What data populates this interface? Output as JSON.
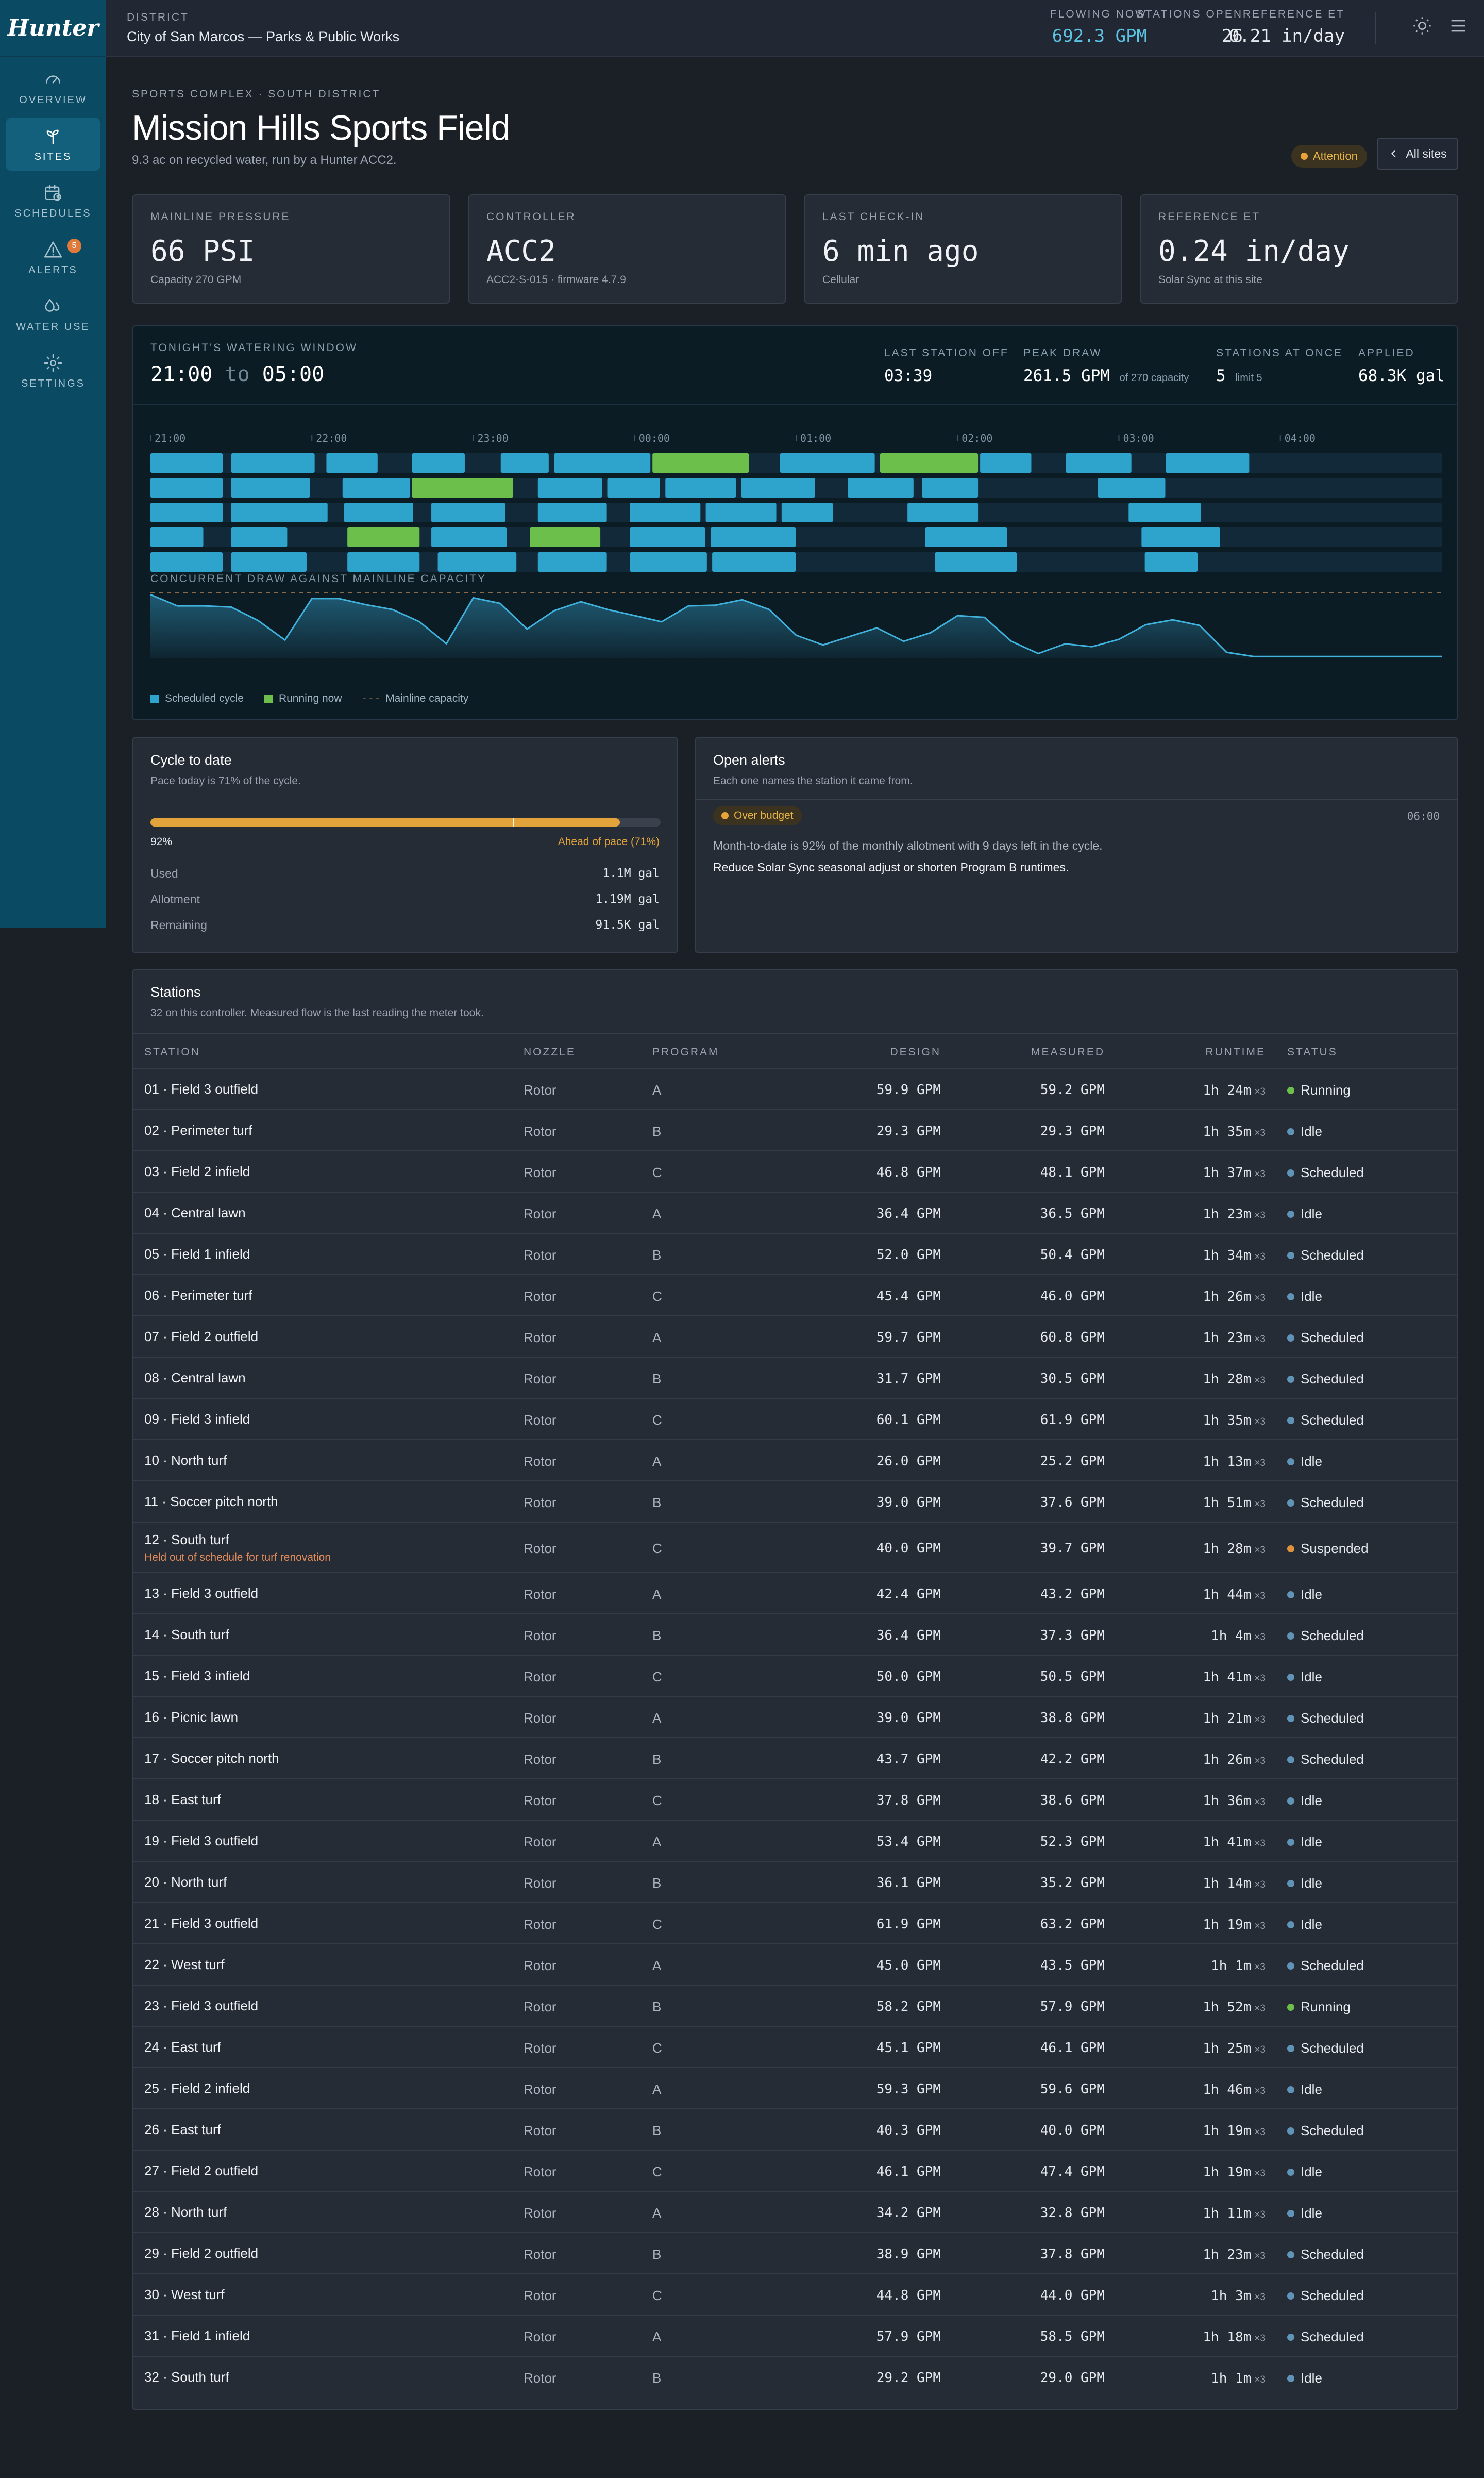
{
  "brand": {
    "logo_text": "Hunter"
  },
  "nav": [
    {
      "label": "OVERVIEW",
      "icon": "gauge-icon",
      "active": false
    },
    {
      "label": "SITES",
      "icon": "sprout-icon",
      "active": true
    },
    {
      "label": "SCHEDULES",
      "icon": "calendar-clock-icon",
      "active": false
    },
    {
      "label": "ALERTS",
      "icon": "alert-triangle-icon",
      "active": false,
      "badge": "5"
    },
    {
      "label": "WATER USE",
      "icon": "droplets-icon",
      "active": false
    },
    {
      "label": "SETTINGS",
      "icon": "gear-icon",
      "active": false
    }
  ],
  "topbar": {
    "district_caption": "DISTRICT",
    "district_name": "City of San Marcos — Parks & Public Works",
    "flowing_caption": "FLOWING NOW",
    "flowing_value": "692.3 GPM",
    "open_caption": "STATIONS OPEN",
    "open_value": "26",
    "et_caption": "REFERENCE ET",
    "et_value": "0.21 in/day",
    "accent": "#5cc3e3"
  },
  "header": {
    "eyebrow": "SPORTS COMPLEX · SOUTH DISTRICT",
    "title": "Mission Hills Sports Field",
    "subtitle": "9.3 ac on recycled water, run by a Hunter ACC2.",
    "status_badge": "Attention",
    "all_sites_button": "All sites"
  },
  "kpis": [
    {
      "caption": "MAINLINE PRESSURE",
      "value": "66 PSI",
      "sub": "Capacity 270 GPM"
    },
    {
      "caption": "CONTROLLER",
      "value": "ACC2",
      "sub": "ACC2-S-015 · firmware 4.7.9"
    },
    {
      "caption": "LAST CHECK-IN",
      "value": "6 min ago",
      "sub": "Cellular"
    },
    {
      "caption": "REFERENCE ET",
      "value": "0.24 in/day",
      "sub": "Solar Sync at this site"
    }
  ],
  "window": {
    "caption": "TONIGHT'S WATERING WINDOW",
    "start": "21:00",
    "to": "to",
    "end": "05:00",
    "stats": [
      {
        "caption": "LAST STATION OFF",
        "value": "03:39",
        "note": ""
      },
      {
        "caption": "PEAK DRAW",
        "value": "261.5 GPM",
        "note": "of 270 capacity"
      },
      {
        "caption": "STATIONS AT ONCE",
        "value": "5",
        "note": "limit 5"
      },
      {
        "caption": "APPLIED",
        "value": "68.3K gal",
        "note": ""
      }
    ],
    "hours": [
      "21:00",
      "22:00",
      "23:00",
      "00:00",
      "01:00",
      "02:00",
      "03:00",
      "04:00"
    ],
    "draw_caption": "CONCURRENT DRAW AGAINST MAINLINE CAPACITY",
    "legend": {
      "scheduled": "Scheduled cycle",
      "running": "Running now",
      "capacity": "Mainline capacity"
    },
    "colors": {
      "scheduled": "#2ea3cc",
      "running": "#6cbf4a",
      "capacity": "#8a6a4a"
    }
  },
  "chart_data": {
    "type": "area",
    "title": "CONCURRENT DRAW AGAINST MAINLINE CAPACITY",
    "xlabel": "",
    "ylabel": "",
    "x": [
      "21:00",
      "21:10",
      "21:20",
      "21:30",
      "21:40",
      "21:50",
      "22:00",
      "22:10",
      "22:20",
      "22:30",
      "22:40",
      "22:50",
      "23:00",
      "23:10",
      "23:20",
      "23:30",
      "23:40",
      "23:50",
      "00:00",
      "00:10",
      "00:20",
      "00:30",
      "00:40",
      "00:50",
      "01:00",
      "01:10",
      "01:20",
      "01:30",
      "01:40",
      "01:50",
      "02:00",
      "02:10",
      "02:20",
      "02:30",
      "02:40",
      "02:50",
      "03:00",
      "03:10",
      "03:20",
      "03:30",
      "03:40",
      "03:50",
      "04:00",
      "04:10",
      "04:20",
      "04:30",
      "04:40",
      "04:50",
      "05:00"
    ],
    "series": [
      {
        "values": [
          261,
          215,
          215,
          210,
          155,
          75,
          245,
          245,
          220,
          200,
          150,
          60,
          248,
          225,
          120,
          195,
          232,
          200,
          175,
          150,
          215,
          218,
          240,
          200,
          95,
          55,
          90,
          125,
          70,
          105,
          175,
          168,
          70,
          20,
          60,
          48,
          78,
          138,
          158,
          135,
          25,
          8,
          8,
          8,
          8,
          8,
          8,
          8,
          8
        ]
      }
    ],
    "capacity": 270,
    "ylim": [
      0,
      270
    ]
  },
  "gantt": {
    "bars": [
      [
        [
          0,
          0.46,
          "s"
        ],
        [
          0.5,
          1.03,
          "s"
        ],
        [
          1.09,
          1.42,
          "s"
        ],
        [
          1.62,
          1.96,
          "s"
        ],
        [
          2.17,
          2.48,
          "s"
        ],
        [
          2.5,
          3.11,
          "s"
        ],
        [
          3.11,
          3.72,
          "r"
        ],
        [
          3.9,
          4.5,
          "s"
        ],
        [
          4.52,
          5.14,
          "r"
        ],
        [
          5.14,
          5.47,
          "s"
        ],
        [
          5.67,
          6.09,
          "s"
        ],
        [
          6.29,
          6.82,
          "s"
        ]
      ],
      [
        [
          0,
          0.46,
          "s"
        ],
        [
          0.5,
          1.0,
          "s"
        ],
        [
          1.19,
          1.62,
          "s"
        ],
        [
          1.62,
          2.26,
          "r"
        ],
        [
          2.4,
          2.81,
          "s"
        ],
        [
          2.83,
          3.17,
          "s"
        ],
        [
          3.19,
          3.64,
          "s"
        ],
        [
          3.66,
          4.13,
          "s"
        ],
        [
          4.32,
          4.74,
          "s"
        ],
        [
          4.78,
          5.14,
          "s"
        ],
        [
          5.87,
          6.3,
          "s"
        ]
      ],
      [
        [
          0,
          0.46,
          "s"
        ],
        [
          0.5,
          1.11,
          "s"
        ],
        [
          1.2,
          1.64,
          "s"
        ],
        [
          1.74,
          2.21,
          "s"
        ],
        [
          2.4,
          2.84,
          "s"
        ],
        [
          2.97,
          3.42,
          "s"
        ],
        [
          3.44,
          3.89,
          "s"
        ],
        [
          3.91,
          4.24,
          "s"
        ],
        [
          4.69,
          5.14,
          "s"
        ],
        [
          6.06,
          6.52,
          "s"
        ]
      ],
      [
        [
          0,
          0.34,
          "s"
        ],
        [
          0.5,
          0.86,
          "s"
        ],
        [
          1.22,
          1.68,
          "r"
        ],
        [
          1.74,
          2.22,
          "s"
        ],
        [
          2.35,
          2.8,
          "r"
        ],
        [
          2.97,
          3.45,
          "s"
        ],
        [
          3.47,
          4.01,
          "s"
        ],
        [
          4.8,
          5.32,
          "s"
        ],
        [
          6.14,
          6.64,
          "s"
        ]
      ],
      [
        [
          0,
          0.46,
          "s"
        ],
        [
          0.5,
          0.98,
          "s"
        ],
        [
          1.22,
          1.68,
          "s"
        ],
        [
          1.78,
          2.28,
          "s"
        ],
        [
          2.4,
          2.84,
          "s"
        ],
        [
          2.97,
          3.46,
          "s"
        ],
        [
          3.48,
          4.01,
          "s"
        ],
        [
          4.86,
          5.38,
          "s"
        ],
        [
          6.16,
          6.5,
          "s"
        ]
      ]
    ]
  },
  "cycle": {
    "title": "Cycle to date",
    "subtitle": "Pace today is 71% of the cycle.",
    "progress": 0.92,
    "pace_marker": 0.71,
    "percent_label": "92%",
    "pace_label": "Ahead of pace (71%)",
    "rows": [
      {
        "label": "Used",
        "value": "1.1M gal"
      },
      {
        "label": "Allotment",
        "value": "1.19M gal"
      },
      {
        "label": "Remaining",
        "value": "91.5K gal"
      }
    ],
    "bar_color": "#e2a43a"
  },
  "alerts": {
    "title": "Open alerts",
    "subtitle": "Each one names the station it came from.",
    "items": [
      {
        "badge": "Over budget",
        "time": "06:00",
        "message": "Month-to-date is 92% of the monthly allotment with 9 days left in the cycle.",
        "action": "Reduce Solar Sync seasonal adjust or shorten Program B runtimes."
      }
    ]
  },
  "stations": {
    "title": "Stations",
    "subtitle": "32 on this controller. Measured flow is the last reading the meter took.",
    "columns": [
      "STATION",
      "NOZZLE",
      "PROGRAM",
      "DESIGN",
      "MEASURED",
      "RUNTIME",
      "STATUS"
    ],
    "status_colors": {
      "Running": "#6cbf4a",
      "Idle": "#5f93b8",
      "Scheduled": "#5f93b8",
      "Suspended": "#e0923a"
    },
    "rows": [
      {
        "name": "01 · Field 3 outfield",
        "nozzle": "Rotor",
        "program": "A",
        "design": "59.9 GPM",
        "measured": "59.2 GPM",
        "runtime": "1h 24m",
        "cycles": "×3",
        "status": "Running",
        "note": ""
      },
      {
        "name": "02 · Perimeter turf",
        "nozzle": "Rotor",
        "program": "B",
        "design": "29.3 GPM",
        "measured": "29.3 GPM",
        "runtime": "1h 35m",
        "cycles": "×3",
        "status": "Idle",
        "note": ""
      },
      {
        "name": "03 · Field 2 infield",
        "nozzle": "Rotor",
        "program": "C",
        "design": "46.8 GPM",
        "measured": "48.1 GPM",
        "runtime": "1h 37m",
        "cycles": "×3",
        "status": "Scheduled",
        "note": ""
      },
      {
        "name": "04 · Central lawn",
        "nozzle": "Rotor",
        "program": "A",
        "design": "36.4 GPM",
        "measured": "36.5 GPM",
        "runtime": "1h 23m",
        "cycles": "×3",
        "status": "Idle",
        "note": ""
      },
      {
        "name": "05 · Field 1 infield",
        "nozzle": "Rotor",
        "program": "B",
        "design": "52.0 GPM",
        "measured": "50.4 GPM",
        "runtime": "1h 34m",
        "cycles": "×3",
        "status": "Scheduled",
        "note": ""
      },
      {
        "name": "06 · Perimeter turf",
        "nozzle": "Rotor",
        "program": "C",
        "design": "45.4 GPM",
        "measured": "46.0 GPM",
        "runtime": "1h 26m",
        "cycles": "×3",
        "status": "Idle",
        "note": ""
      },
      {
        "name": "07 · Field 2 outfield",
        "nozzle": "Rotor",
        "program": "A",
        "design": "59.7 GPM",
        "measured": "60.8 GPM",
        "runtime": "1h 23m",
        "cycles": "×3",
        "status": "Scheduled",
        "note": ""
      },
      {
        "name": "08 · Central lawn",
        "nozzle": "Rotor",
        "program": "B",
        "design": "31.7 GPM",
        "measured": "30.5 GPM",
        "runtime": "1h 28m",
        "cycles": "×3",
        "status": "Scheduled",
        "note": ""
      },
      {
        "name": "09 · Field 3 infield",
        "nozzle": "Rotor",
        "program": "C",
        "design": "60.1 GPM",
        "measured": "61.9 GPM",
        "runtime": "1h 35m",
        "cycles": "×3",
        "status": "Scheduled",
        "note": ""
      },
      {
        "name": "10 · North turf",
        "nozzle": "Rotor",
        "program": "A",
        "design": "26.0 GPM",
        "measured": "25.2 GPM",
        "runtime": "1h 13m",
        "cycles": "×3",
        "status": "Idle",
        "note": ""
      },
      {
        "name": "11 · Soccer pitch north",
        "nozzle": "Rotor",
        "program": "B",
        "design": "39.0 GPM",
        "measured": "37.6 GPM",
        "runtime": "1h 51m",
        "cycles": "×3",
        "status": "Scheduled",
        "note": ""
      },
      {
        "name": "12 · South turf",
        "nozzle": "Rotor",
        "program": "C",
        "design": "40.0 GPM",
        "measured": "39.7 GPM",
        "runtime": "1h 28m",
        "cycles": "×3",
        "status": "Suspended",
        "note": "Held out of schedule for turf renovation"
      },
      {
        "name": "13 · Field 3 outfield",
        "nozzle": "Rotor",
        "program": "A",
        "design": "42.4 GPM",
        "measured": "43.2 GPM",
        "runtime": "1h 44m",
        "cycles": "×3",
        "status": "Idle",
        "note": ""
      },
      {
        "name": "14 · South turf",
        "nozzle": "Rotor",
        "program": "B",
        "design": "36.4 GPM",
        "measured": "37.3 GPM",
        "runtime": "1h 4m",
        "cycles": "×3",
        "status": "Scheduled",
        "note": ""
      },
      {
        "name": "15 · Field 3 infield",
        "nozzle": "Rotor",
        "program": "C",
        "design": "50.0 GPM",
        "measured": "50.5 GPM",
        "runtime": "1h 41m",
        "cycles": "×3",
        "status": "Idle",
        "note": ""
      },
      {
        "name": "16 · Picnic lawn",
        "nozzle": "Rotor",
        "program": "A",
        "design": "39.0 GPM",
        "measured": "38.8 GPM",
        "runtime": "1h 21m",
        "cycles": "×3",
        "status": "Scheduled",
        "note": ""
      },
      {
        "name": "17 · Soccer pitch north",
        "nozzle": "Rotor",
        "program": "B",
        "design": "43.7 GPM",
        "measured": "42.2 GPM",
        "runtime": "1h 26m",
        "cycles": "×3",
        "status": "Scheduled",
        "note": ""
      },
      {
        "name": "18 · East turf",
        "nozzle": "Rotor",
        "program": "C",
        "design": "37.8 GPM",
        "measured": "38.6 GPM",
        "runtime": "1h 36m",
        "cycles": "×3",
        "status": "Idle",
        "note": ""
      },
      {
        "name": "19 · Field 3 outfield",
        "nozzle": "Rotor",
        "program": "A",
        "design": "53.4 GPM",
        "measured": "52.3 GPM",
        "runtime": "1h 41m",
        "cycles": "×3",
        "status": "Idle",
        "note": ""
      },
      {
        "name": "20 · North turf",
        "nozzle": "Rotor",
        "program": "B",
        "design": "36.1 GPM",
        "measured": "35.2 GPM",
        "runtime": "1h 14m",
        "cycles": "×3",
        "status": "Idle",
        "note": ""
      },
      {
        "name": "21 · Field 3 outfield",
        "nozzle": "Rotor",
        "program": "C",
        "design": "61.9 GPM",
        "measured": "63.2 GPM",
        "runtime": "1h 19m",
        "cycles": "×3",
        "status": "Idle",
        "note": ""
      },
      {
        "name": "22 · West turf",
        "nozzle": "Rotor",
        "program": "A",
        "design": "45.0 GPM",
        "measured": "43.5 GPM",
        "runtime": "1h 1m",
        "cycles": "×3",
        "status": "Scheduled",
        "note": ""
      },
      {
        "name": "23 · Field 3 outfield",
        "nozzle": "Rotor",
        "program": "B",
        "design": "58.2 GPM",
        "measured": "57.9 GPM",
        "runtime": "1h 52m",
        "cycles": "×3",
        "status": "Running",
        "note": ""
      },
      {
        "name": "24 · East turf",
        "nozzle": "Rotor",
        "program": "C",
        "design": "45.1 GPM",
        "measured": "46.1 GPM",
        "runtime": "1h 25m",
        "cycles": "×3",
        "status": "Scheduled",
        "note": ""
      },
      {
        "name": "25 · Field 2 infield",
        "nozzle": "Rotor",
        "program": "A",
        "design": "59.3 GPM",
        "measured": "59.6 GPM",
        "runtime": "1h 46m",
        "cycles": "×3",
        "status": "Idle",
        "note": ""
      },
      {
        "name": "26 · East turf",
        "nozzle": "Rotor",
        "program": "B",
        "design": "40.3 GPM",
        "measured": "40.0 GPM",
        "runtime": "1h 19m",
        "cycles": "×3",
        "status": "Scheduled",
        "note": ""
      },
      {
        "name": "27 · Field 2 outfield",
        "nozzle": "Rotor",
        "program": "C",
        "design": "46.1 GPM",
        "measured": "47.4 GPM",
        "runtime": "1h 19m",
        "cycles": "×3",
        "status": "Idle",
        "note": ""
      },
      {
        "name": "28 · North turf",
        "nozzle": "Rotor",
        "program": "A",
        "design": "34.2 GPM",
        "measured": "32.8 GPM",
        "runtime": "1h 11m",
        "cycles": "×3",
        "status": "Idle",
        "note": ""
      },
      {
        "name": "29 · Field 2 outfield",
        "nozzle": "Rotor",
        "program": "B",
        "design": "38.9 GPM",
        "measured": "37.8 GPM",
        "runtime": "1h 23m",
        "cycles": "×3",
        "status": "Scheduled",
        "note": ""
      },
      {
        "name": "30 · West turf",
        "nozzle": "Rotor",
        "program": "C",
        "design": "44.8 GPM",
        "measured": "44.0 GPM",
        "runtime": "1h 3m",
        "cycles": "×3",
        "status": "Scheduled",
        "note": ""
      },
      {
        "name": "31 · Field 1 infield",
        "nozzle": "Rotor",
        "program": "A",
        "design": "57.9 GPM",
        "measured": "58.5 GPM",
        "runtime": "1h 18m",
        "cycles": "×3",
        "status": "Scheduled",
        "note": ""
      },
      {
        "name": "32 · South turf",
        "nozzle": "Rotor",
        "program": "B",
        "design": "29.2 GPM",
        "measured": "29.0 GPM",
        "runtime": "1h 1m",
        "cycles": "×3",
        "status": "Idle",
        "note": ""
      }
    ]
  }
}
